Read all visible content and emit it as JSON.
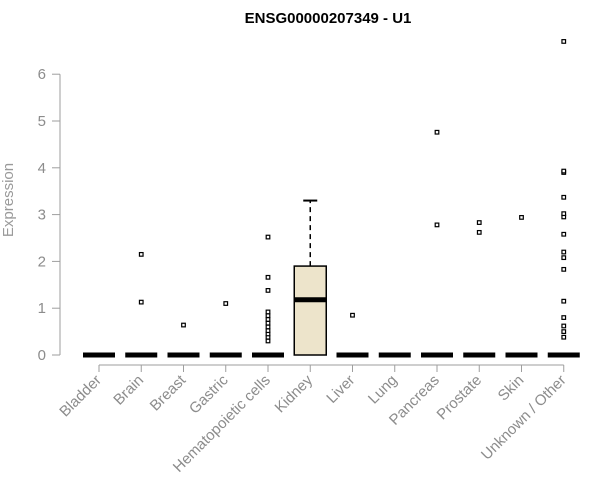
{
  "chart_data": {
    "type": "box",
    "title": "ENSG00000207349 - U1",
    "xlabel": "",
    "ylabel": "Expression",
    "ylim": [
      0,
      6.8
    ],
    "yticks": [
      0,
      1,
      2,
      3,
      4,
      5,
      6
    ],
    "grid": false,
    "box_fill": "#ede4cb",
    "categories": [
      "Bladder",
      "Brain",
      "Breast",
      "Gastric",
      "Hematopoietic cells",
      "Kidney",
      "Liver",
      "Lung",
      "Pancreas",
      "Prostate",
      "Skin",
      "Unknown / Other"
    ],
    "boxes": [
      {
        "q1": 0,
        "median": 0,
        "q3": 0,
        "whisker_low": 0,
        "whisker_high": 0,
        "outliers": []
      },
      {
        "q1": 0,
        "median": 0,
        "q3": 0,
        "whisker_low": 0,
        "whisker_high": 0,
        "outliers": [
          1.13,
          2.15
        ]
      },
      {
        "q1": 0,
        "median": 0,
        "q3": 0,
        "whisker_low": 0,
        "whisker_high": 0,
        "outliers": [
          0.64
        ]
      },
      {
        "q1": 0,
        "median": 0,
        "q3": 0,
        "whisker_low": 0,
        "whisker_high": 0,
        "outliers": [
          1.1
        ]
      },
      {
        "q1": 0,
        "median": 0,
        "q3": 0,
        "whisker_low": 0,
        "whisker_high": 0,
        "outliers": [
          0.3,
          0.38,
          0.45,
          0.52,
          0.6,
          0.68,
          0.76,
          0.84,
          0.92,
          1.38,
          1.66,
          2.52
        ]
      },
      {
        "q1": 0,
        "median": 1.18,
        "q3": 1.9,
        "whisker_low": 0,
        "whisker_high": 3.3,
        "outliers": []
      },
      {
        "q1": 0,
        "median": 0,
        "q3": 0,
        "whisker_low": 0,
        "whisker_high": 0,
        "outliers": [
          0.85
        ]
      },
      {
        "q1": 0,
        "median": 0,
        "q3": 0,
        "whisker_low": 0,
        "whisker_high": 0,
        "outliers": []
      },
      {
        "q1": 0,
        "median": 0,
        "q3": 0,
        "whisker_low": 0,
        "whisker_high": 0,
        "outliers": [
          2.78,
          4.76
        ]
      },
      {
        "q1": 0,
        "median": 0,
        "q3": 0,
        "whisker_low": 0,
        "whisker_high": 0,
        "outliers": [
          2.62,
          2.83
        ]
      },
      {
        "q1": 0,
        "median": 0,
        "q3": 0,
        "whisker_low": 0,
        "whisker_high": 0,
        "outliers": [
          2.94
        ]
      },
      {
        "q1": 0,
        "median": 0,
        "q3": 0,
        "whisker_low": 0,
        "whisker_high": 0,
        "outliers": [
          0.38,
          0.5,
          0.62,
          0.8,
          1.15,
          1.83,
          2.08,
          2.2,
          2.58,
          2.95,
          3.02,
          3.37,
          3.9,
          3.93,
          6.7
        ]
      }
    ]
  }
}
